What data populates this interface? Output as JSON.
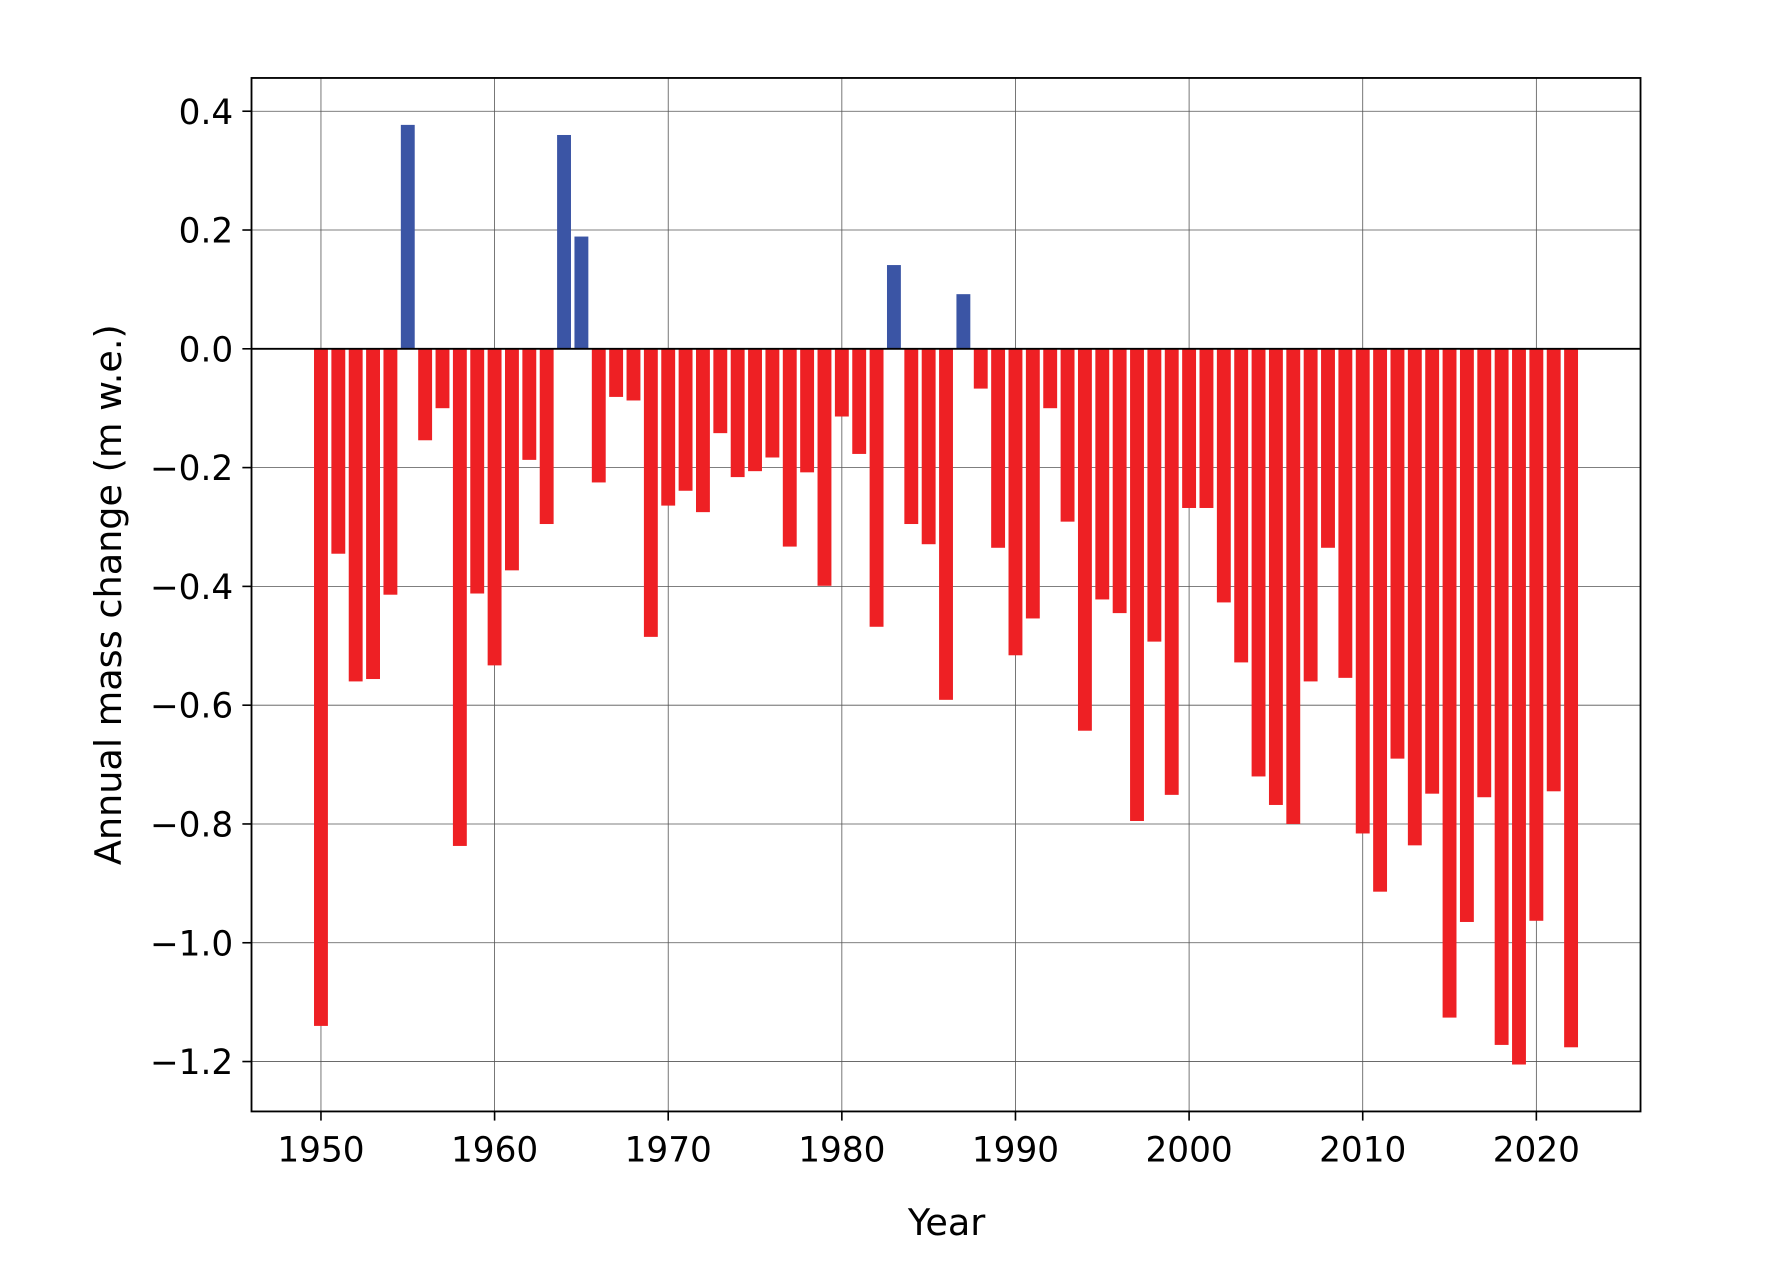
{
  "chart_data": {
    "type": "bar",
    "title": "",
    "xlabel": "Year",
    "ylabel": "Annual mass change (m w.e.)",
    "xlim": [
      1946,
      2026
    ],
    "ylim": [
      -1.284,
      0.456
    ],
    "grid": true,
    "xticks": [
      1950,
      1960,
      1970,
      1980,
      1990,
      2000,
      2010,
      2020
    ],
    "yticks": [
      0.4,
      0.2,
      0.0,
      -0.2,
      -0.4,
      -0.6,
      -0.8,
      -1.0,
      -1.2
    ],
    "ytick_labels": [
      "0.4",
      "0.2",
      "0.0",
      "−0.2",
      "−0.4",
      "−0.6",
      "−0.8",
      "−1.0",
      "−1.2"
    ],
    "colors": {
      "positive": "#3b55a5",
      "negative": "#ee2024"
    },
    "x": [
      1950,
      1951,
      1952,
      1953,
      1954,
      1955,
      1956,
      1957,
      1958,
      1959,
      1960,
      1961,
      1962,
      1963,
      1964,
      1965,
      1966,
      1967,
      1968,
      1969,
      1970,
      1971,
      1972,
      1973,
      1974,
      1975,
      1976,
      1977,
      1978,
      1979,
      1980,
      1981,
      1982,
      1983,
      1984,
      1985,
      1986,
      1987,
      1988,
      1989,
      1990,
      1991,
      1992,
      1993,
      1994,
      1995,
      1996,
      1997,
      1998,
      1999,
      2000,
      2001,
      2002,
      2003,
      2004,
      2005,
      2006,
      2007,
      2008,
      2009,
      2010,
      2011,
      2012,
      2013,
      2014,
      2015,
      2016,
      2017,
      2018,
      2019,
      2020,
      2021,
      2022
    ],
    "values": [
      -1.14,
      -0.345,
      -0.56,
      -0.556,
      -0.414,
      0.377,
      -0.154,
      -0.1,
      -0.837,
      -0.412,
      -0.533,
      -0.373,
      -0.187,
      -0.295,
      0.36,
      0.189,
      -0.225,
      -0.081,
      -0.087,
      -0.485,
      -0.264,
      -0.239,
      -0.275,
      -0.142,
      -0.216,
      -0.206,
      -0.183,
      -0.333,
      -0.208,
      -0.399,
      -0.114,
      -0.177,
      -0.468,
      0.141,
      -0.295,
      -0.329,
      -0.591,
      0.092,
      -0.067,
      -0.335,
      -0.516,
      -0.454,
      -0.1,
      -0.291,
      -0.643,
      -0.422,
      -0.445,
      -0.795,
      -0.493,
      -0.751,
      -0.268,
      -0.268,
      -0.427,
      -0.528,
      -0.72,
      -0.768,
      -0.8,
      -0.56,
      -0.335,
      -0.554,
      -0.816,
      -0.914,
      -0.69,
      -0.836,
      -0.749,
      -1.126,
      -0.965,
      -0.755,
      -1.172,
      -1.205,
      -0.963,
      -0.745,
      -1.176
    ]
  }
}
